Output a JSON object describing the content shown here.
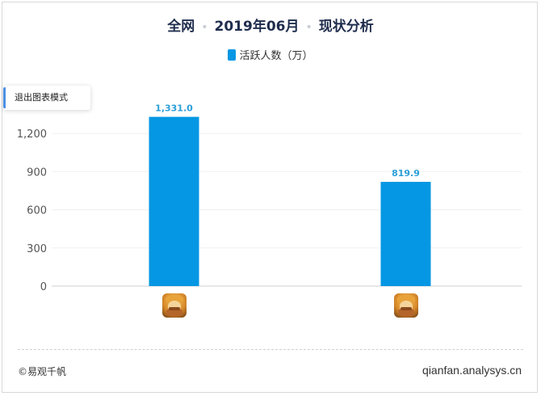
{
  "header": {
    "scope": "全网",
    "period": "2019年06月",
    "analysis": "现状分析",
    "separator": "•"
  },
  "controls": {
    "exit_chart_mode": "退出图表模式"
  },
  "chart_data": {
    "type": "bar",
    "categories": [
      "app-icon-1",
      "app-icon-2"
    ],
    "series": [
      {
        "name": "活跃人数（万）",
        "values": [
          1331.0,
          819.9
        ],
        "labels": [
          "1,331.0",
          "819.9"
        ],
        "color": "#0597e3"
      }
    ],
    "ylim": [
      0,
      1500
    ],
    "yticks": [
      0,
      300,
      600,
      900,
      1200
    ],
    "ytick_labels": [
      "0",
      "300",
      "600",
      "900",
      "1,200"
    ],
    "grid": true,
    "legend": "top-center"
  },
  "footer": {
    "copyright": "©易观千帆",
    "site": "qianfan.analysys.cn"
  }
}
